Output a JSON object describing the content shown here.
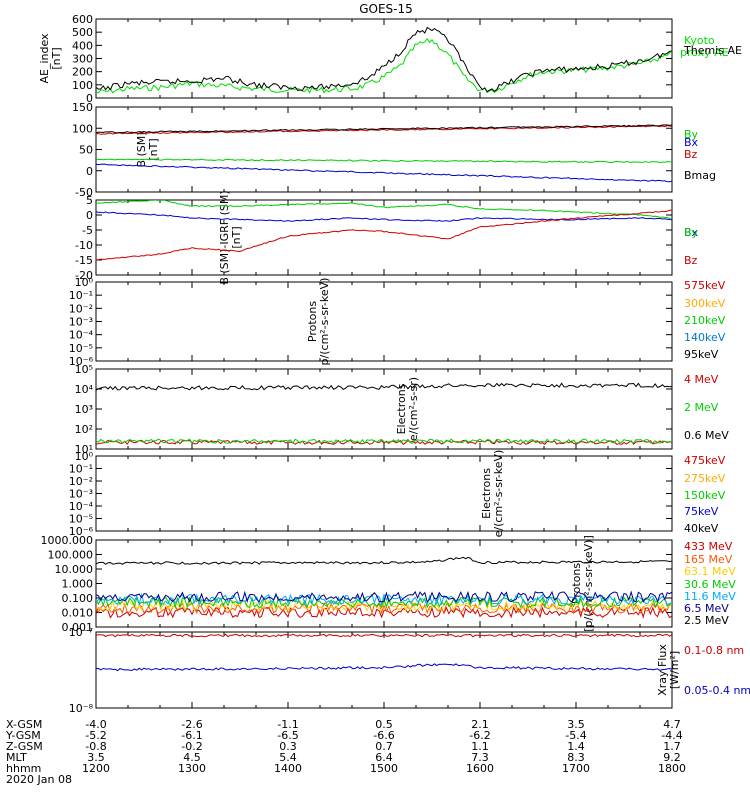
{
  "title": "GOES-15",
  "chart_data": [
    {
      "type": "line",
      "ylabel": "AE_index [nT]",
      "ylim": [
        0,
        600
      ],
      "yticks": [
        "0",
        "100",
        "200",
        "300",
        "400",
        "500",
        "600"
      ],
      "x": [
        1200,
        1220,
        1240,
        1300,
        1320,
        1340,
        1400,
        1420,
        1440,
        1450,
        1500,
        1510,
        1520,
        1530,
        1540,
        1545,
        1550,
        1600,
        1610,
        1620,
        1630,
        1640,
        1700,
        1720,
        1740,
        1800
      ],
      "series": [
        {
          "name": "Kyoto proxy AE",
          "color": "#00dd00",
          "values": [
            40,
            70,
            80,
            110,
            90,
            70,
            60,
            60,
            70,
            100,
            160,
            240,
            400,
            440,
            330,
            250,
            160,
            60,
            60,
            120,
            170,
            200,
            210,
            230,
            260,
            330
          ]
        },
        {
          "name": "Themis AE",
          "color": "#000000",
          "values": [
            60,
            110,
            120,
            130,
            150,
            100,
            80,
            80,
            110,
            150,
            240,
            350,
            500,
            520,
            440,
            360,
            250,
            70,
            70,
            130,
            180,
            210,
            220,
            240,
            280,
            350
          ]
        }
      ]
    },
    {
      "type": "line",
      "ylabel": "B (SM) [nT]",
      "ylim": [
        -50,
        150
      ],
      "yticks": [
        "-50",
        "0",
        "50",
        "100",
        "150"
      ],
      "x": [
        1200,
        1800
      ],
      "series": [
        {
          "name": "Bx",
          "color": "#0000cc",
          "values": [
            15,
            -25
          ]
        },
        {
          "name": "By",
          "color": "#00cc00",
          "values": [
            27,
            20
          ]
        },
        {
          "name": "Bz",
          "color": "#cc0000",
          "values": [
            87,
            105
          ]
        },
        {
          "name": "Bmag",
          "color": "#000000",
          "values": [
            90,
            107
          ]
        }
      ]
    },
    {
      "type": "line",
      "ylabel": "B (SM)-IGRF (SM) [nT]",
      "ylim": [
        -20,
        5
      ],
      "yticks": [
        "-20",
        "-15",
        "-10",
        "-5",
        "0",
        "5"
      ],
      "x": [
        1200,
        1240,
        1300,
        1330,
        1400,
        1440,
        1500,
        1540,
        1600,
        1640,
        1700,
        1740,
        1800
      ],
      "series": [
        {
          "name": "Bx",
          "color": "#0000cc",
          "values": [
            1,
            0,
            -1,
            -1.5,
            -2,
            -1,
            -1.5,
            -2,
            -1,
            -1.5,
            -1.5,
            -1,
            -1.5
          ]
        },
        {
          "name": "By",
          "color": "#00cc00",
          "values": [
            4,
            5,
            3,
            3,
            3.5,
            4,
            2.5,
            3.5,
            2,
            1.5,
            1,
            0,
            -1
          ]
        },
        {
          "name": "Bz",
          "color": "#cc0000",
          "values": [
            -15,
            -13,
            -11,
            -12,
            -7,
            -5,
            -5.5,
            -8,
            -4,
            -2,
            -1,
            0.5,
            1.5
          ]
        }
      ]
    },
    {
      "type": "line",
      "ylabel": "Protons p/(cm²-s-sr-keV)",
      "ylim": [
        1e-06,
        1
      ],
      "yscale": "log",
      "yticks": [
        "10⁻⁶",
        "10⁻⁵",
        "10⁻⁴",
        "10⁻³",
        "10⁻²",
        "10⁻¹",
        "10⁰"
      ],
      "series": [
        {
          "name": "575keV",
          "color": "#cc0000"
        },
        {
          "name": "300keV",
          "color": "#ffaa00"
        },
        {
          "name": "210keV",
          "color": "#00cc00"
        },
        {
          "name": "140keV",
          "color": "#0077cc"
        },
        {
          "name": "95keV",
          "color": "#000000"
        }
      ]
    },
    {
      "type": "line",
      "ylabel": "Electrons e/(cm²-s-sr)",
      "ylim": [
        10,
        100000
      ],
      "yscale": "log",
      "yticks": [
        "10¹",
        "10²",
        "10³",
        "10⁴",
        "10⁵"
      ],
      "x": [
        1200,
        1500,
        1600,
        1800
      ],
      "series": [
        {
          "name": "4 MeV",
          "color": "#cc0000",
          "values": [
            22,
            21,
            22,
            21
          ]
        },
        {
          "name": "2 MeV",
          "color": "#00cc00",
          "values": [
            25,
            24,
            25,
            24
          ]
        },
        {
          "name": "0.6 MeV",
          "color": "#000000",
          "values": [
            11000,
            12000,
            16000,
            15000
          ]
        }
      ]
    },
    {
      "type": "line",
      "ylabel": "Electrons e/(cm²-s-sr-keV)",
      "ylim": [
        1e-06,
        1
      ],
      "yscale": "log",
      "yticks": [
        "10⁻⁶",
        "10⁻⁵",
        "10⁻⁴",
        "10⁻³",
        "10⁻²",
        "10⁻¹",
        "10⁰"
      ],
      "series": [
        {
          "name": "475keV",
          "color": "#cc0000"
        },
        {
          "name": "275keV",
          "color": "#ffaa00"
        },
        {
          "name": "150keV",
          "color": "#00cc00"
        },
        {
          "name": "75keV",
          "color": "#0000cc"
        },
        {
          "name": "40keV",
          "color": "#000000"
        }
      ]
    },
    {
      "type": "line",
      "ylabel": "Protons [p/(cm²-s-sr-keV)]",
      "ylim": [
        0.001,
        1000
      ],
      "yscale": "log",
      "yticks": [
        "0.001",
        "0.010",
        "0.100",
        "1.000",
        "10.000",
        "100.000",
        "1000.000"
      ],
      "x": [
        1200,
        1500,
        1530,
        1550,
        1600,
        1800
      ],
      "series": [
        {
          "name": "433 MeV",
          "color": "#cc0000",
          "values": [
            0.01,
            0.01,
            0.01,
            0.01,
            0.01,
            0.01
          ]
        },
        {
          "name": "165 MeV",
          "color": "#ff5500",
          "values": [
            0.02,
            0.02,
            0.02,
            0.02,
            0.02,
            0.02
          ]
        },
        {
          "name": "63.1 MeV",
          "color": "#ffcc00",
          "values": [
            0.03,
            0.03,
            0.03,
            0.03,
            0.03,
            0.03
          ]
        },
        {
          "name": "30.6 MeV",
          "color": "#00cc00",
          "values": [
            0.05,
            0.05,
            0.05,
            0.05,
            0.05,
            0.05
          ]
        },
        {
          "name": "11.6 MeV",
          "color": "#00aaff",
          "values": [
            0.08,
            0.08,
            0.08,
            0.08,
            0.08,
            0.08
          ]
        },
        {
          "name": "6.5 MeV",
          "color": "#000088",
          "values": [
            0.12,
            0.12,
            0.12,
            0.12,
            0.12,
            0.12
          ]
        },
        {
          "name": "2.5 MeV",
          "color": "#000000",
          "values": [
            25,
            27,
            30,
            60,
            28,
            32
          ]
        }
      ]
    },
    {
      "type": "line",
      "ylabel": "Xray Flux [W/m²]",
      "ylim": [
        1e-08,
        1e-07
      ],
      "yscale": "log",
      "yticks": [
        "10⁻⁸",
        "10⁻⁷"
      ],
      "x": [
        1200,
        1400,
        1500,
        1540,
        1600,
        1800
      ],
      "series": [
        {
          "name": "0.1-0.8 nm",
          "color": "#cc0000",
          "values": [
            9e-08,
            9e-08,
            9e-08,
            9e-08,
            9e-08,
            9e-08
          ]
        },
        {
          "name": "0.05-0.4 nm",
          "color": "#0000cc",
          "values": [
            3.2e-08,
            3.3e-08,
            3.4e-08,
            3.8e-08,
            3.4e-08,
            3.2e-08
          ]
        }
      ]
    }
  ],
  "x_axis": {
    "rows": [
      {
        "label": "X-GSM",
        "values": [
          "-4.0",
          "-2.6",
          "-1.1",
          "0.5",
          "2.1",
          "3.5",
          "4.7"
        ]
      },
      {
        "label": "Y-GSM",
        "values": [
          "-5.2",
          "-6.1",
          "-6.5",
          "-6.6",
          "-6.2",
          "-5.4",
          "-4.4"
        ]
      },
      {
        "label": "Z-GSM",
        "values": [
          "-0.8",
          "-0.2",
          "0.3",
          "0.7",
          "1.1",
          "1.4",
          "1.7"
        ]
      },
      {
        "label": "MLT",
        "values": [
          "3.5",
          "4.5",
          "5.4",
          "6.4",
          "7.3",
          "8.3",
          "9.2"
        ]
      },
      {
        "label": "hhmm",
        "values": [
          "1200",
          "1300",
          "1400",
          "1500",
          "1600",
          "1700",
          "1800"
        ]
      }
    ],
    "date": "2020 Jan 08"
  }
}
